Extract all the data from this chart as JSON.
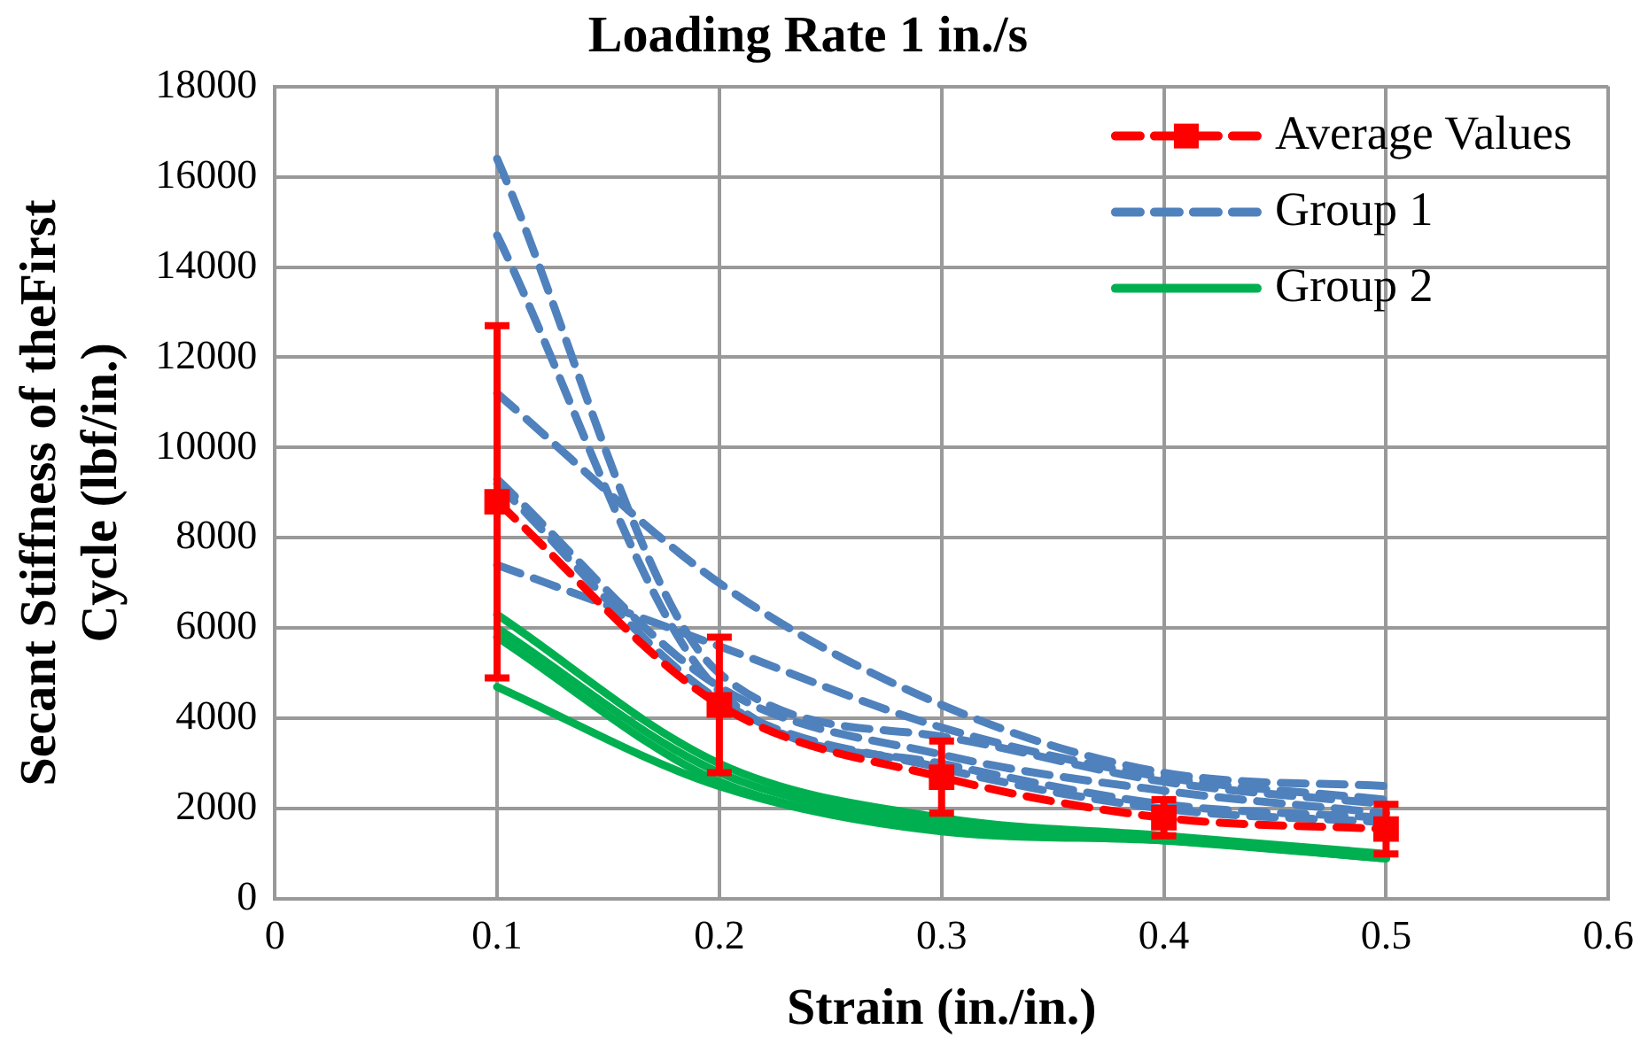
{
  "chart_data": {
    "type": "line",
    "title": "Loading Rate 1 in./s",
    "xlabel": "Strain (in./in.)",
    "ylabel": "Secant Stiffness of theFirst Cycle (lbf/in.)",
    "x": [
      0.1,
      0.2,
      0.3,
      0.4,
      0.5
    ],
    "series": [
      {
        "name": "Average Values",
        "color": "#ff0000",
        "line_style": "dashed",
        "marker": "square",
        "values": [
          8800,
          4300,
          2700,
          1800,
          1550
        ],
        "errors": [
          3900,
          1500,
          800,
          400,
          550
        ]
      },
      {
        "name": "Group 1",
        "color": "#4f81bd",
        "line_style": "dashed",
        "marker": "none",
        "values": [
          16400,
          5000,
          3600,
          2600,
          2100
        ]
      },
      {
        "color": "#4f81bd",
        "line_style": "dashed",
        "marker": "none",
        "values": [
          14700,
          4600,
          3000,
          2100,
          1800
        ]
      },
      {
        "color": "#4f81bd",
        "line_style": "dashed",
        "marker": "none",
        "values": [
          11200,
          7000,
          4300,
          2800,
          2500
        ]
      },
      {
        "color": "#4f81bd",
        "line_style": "dashed",
        "marker": "none",
        "values": [
          9300,
          4700,
          3200,
          2400,
          1900
        ]
      },
      {
        "color": "#4f81bd",
        "line_style": "dashed",
        "marker": "none",
        "values": [
          9200,
          4400,
          2900,
          2000,
          1700
        ]
      },
      {
        "color": "#4f81bd",
        "line_style": "dashed",
        "marker": "none",
        "values": [
          7400,
          5600,
          3800,
          2700,
          2200
        ]
      },
      {
        "name": "Group 2",
        "color": "#00b050",
        "line_style": "solid",
        "marker": "none",
        "values": [
          6300,
          3000,
          1800,
          1400,
          1000
        ]
      },
      {
        "color": "#00b050",
        "line_style": "solid",
        "marker": "none",
        "values": [
          6000,
          2800,
          1700,
          1350,
          950
        ]
      },
      {
        "color": "#00b050",
        "line_style": "solid",
        "marker": "none",
        "values": [
          5800,
          2600,
          1600,
          1300,
          900
        ]
      },
      {
        "color": "#00b050",
        "line_style": "solid",
        "marker": "none",
        "values": [
          4700,
          2500,
          1500,
          1300,
          900
        ]
      }
    ],
    "xlim": [
      0,
      0.6
    ],
    "xticks": [
      0,
      0.1,
      0.2,
      0.3,
      0.4,
      0.5,
      0.6
    ],
    "ylim": [
      0,
      18000
    ],
    "yticks": [
      0,
      2000,
      4000,
      6000,
      8000,
      10000,
      12000,
      14000,
      16000,
      18000
    ],
    "grid": true,
    "legend": "top right"
  }
}
